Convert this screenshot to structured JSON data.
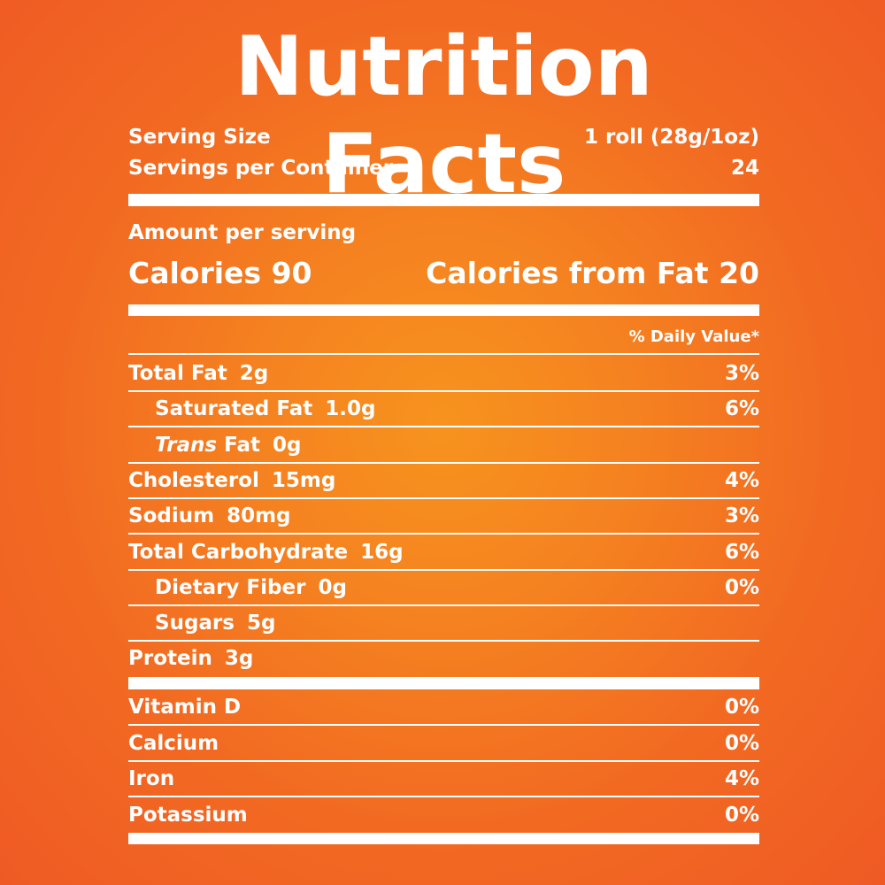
{
  "title": "Nutrition Facts",
  "serving": {
    "size_label": "Serving Size",
    "size_value": "1 roll (28g/1oz)",
    "per_container_label": "Servings per Container",
    "per_container_value": "24"
  },
  "amount_per_serving": "Amount per serving",
  "calories": {
    "label": "Calories",
    "value": "90",
    "from_fat_label": "Calories from Fat",
    "from_fat_value": "20"
  },
  "daily_value_header": "% Daily Value*",
  "nutrients": [
    {
      "name": "Total Fat",
      "amount": "2g",
      "dv": "3%"
    },
    {
      "name": "Saturated Fat",
      "amount": "1.0g",
      "dv": "6%"
    },
    {
      "name_italic": "Trans",
      "name": "Fat",
      "amount": "0g",
      "dv": ""
    },
    {
      "name": "Cholesterol",
      "amount": "15mg",
      "dv": "4%"
    },
    {
      "name": "Sodium",
      "amount": "80mg",
      "dv": "3%"
    },
    {
      "name": "Total Carbohydrate",
      "amount": "16g",
      "dv": "6%"
    },
    {
      "name": "Dietary Fiber",
      "amount": "0g",
      "dv": "0%"
    },
    {
      "name": "Sugars",
      "amount": "5g",
      "dv": ""
    },
    {
      "name": "Protein",
      "amount": "3g",
      "dv": ""
    }
  ],
  "vitamins": [
    {
      "name": "Vitamin D",
      "dv": "0%"
    },
    {
      "name": "Calcium",
      "dv": "0%"
    },
    {
      "name": "Iron",
      "dv": "4%"
    },
    {
      "name": "Potassium",
      "dv": "0%"
    }
  ],
  "colors": {
    "background_center": "#f7931e",
    "background_edge": "#ef5a24",
    "text": "#ffffff"
  }
}
